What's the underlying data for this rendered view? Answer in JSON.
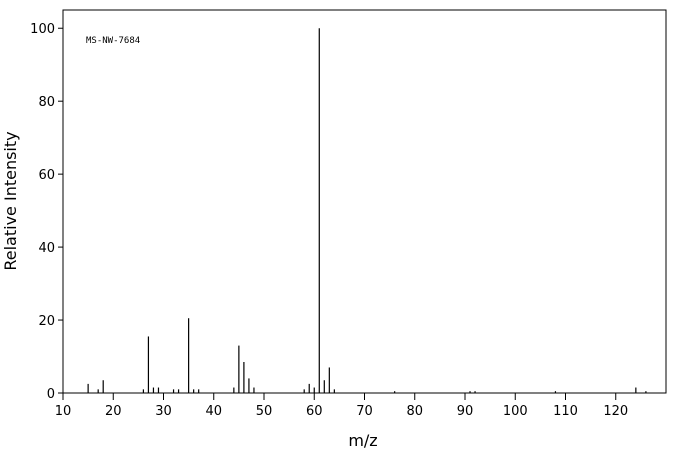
{
  "chart_data": {
    "type": "stick",
    "annotation": "MS-NW-7684",
    "xlabel": "m/z",
    "ylabel": "Relative Intensity",
    "x": [
      15,
      17,
      18,
      26,
      27,
      28,
      29,
      32,
      33,
      35,
      36,
      37,
      44,
      45,
      46,
      47,
      48,
      58,
      59,
      60,
      61,
      62,
      63,
      64,
      76,
      91,
      92,
      108,
      124,
      126
    ],
    "values": [
      2.5,
      1,
      3.5,
      1,
      15.5,
      1.5,
      1.5,
      1,
      1,
      20.5,
      1,
      1,
      1.5,
      13,
      8.5,
      4,
      1.5,
      1,
      2.5,
      1.5,
      100,
      3.5,
      7,
      1,
      0.5,
      0.5,
      0.5,
      0.5,
      1.5,
      0.5
    ],
    "color": "#000000",
    "xlim": [
      10,
      130
    ],
    "xticks": [
      10,
      20,
      30,
      40,
      50,
      60,
      70,
      80,
      90,
      100,
      110,
      120
    ],
    "ylim": [
      0,
      105
    ],
    "yticks": [
      0,
      20,
      40,
      60,
      80,
      100
    ]
  }
}
